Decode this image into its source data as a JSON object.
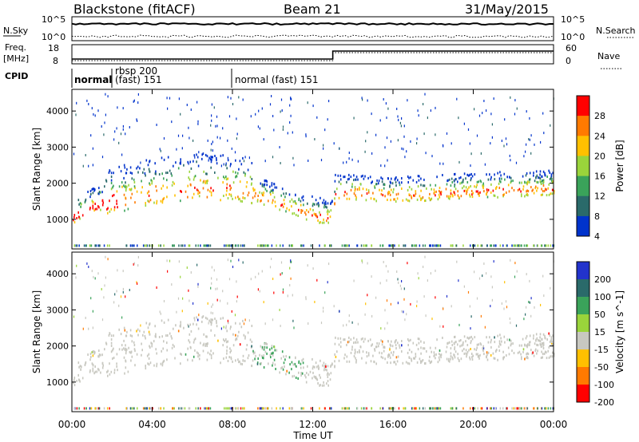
{
  "header": {
    "title": "Blackstone (fitACF)",
    "beam": "Beam 21",
    "date": "31/May/2015"
  },
  "noise_panel": {
    "left_label": "N.Sky",
    "right_label": "N.Search",
    "left_ticks": [
      "10^5",
      "10^0"
    ],
    "right_ticks": [
      "10^5",
      "10^0"
    ]
  },
  "freq_panel": {
    "left_label_line1": "Freq.",
    "left_label_line2": "[MHz]",
    "left_ticks": [
      "18",
      "8"
    ],
    "right_label": "Nave",
    "right_ticks": [
      "60",
      "0"
    ]
  },
  "cpid_panel": {
    "label": "CPID",
    "segments": [
      {
        "text": "normal",
        "start_hour": 0.0
      },
      {
        "text": "rbsp 200",
        "text2": "(fast) 151",
        "start_hour": 1.6
      },
      {
        "text": "normal (fast)  151",
        "start_hour": 8.0
      }
    ]
  },
  "time_axis": {
    "label": "Time UT",
    "ticks": [
      "00:00",
      "04:00",
      "08:00",
      "12:00",
      "16:00",
      "20:00",
      "00:00"
    ],
    "hours": [
      0,
      4,
      8,
      12,
      16,
      20,
      24
    ]
  },
  "range_axis": {
    "label": "Slant Range [km]",
    "ticks": [
      "1000",
      "2000",
      "3000",
      "4000"
    ]
  },
  "chart_data": [
    {
      "type": "heatmap",
      "title": "Power",
      "ylabel": "Slant Range [km]",
      "xlabel": "",
      "xlim": [
        0,
        24
      ],
      "ylim": [
        180,
        4600
      ],
      "colorbar": {
        "label": "Power [dB]",
        "ticks": [
          "28",
          "24",
          "20",
          "16",
          "12",
          "8",
          "4"
        ],
        "colors": [
          "#ff0000",
          "#ff7a00",
          "#ffc000",
          "#9ad43b",
          "#3aa35a",
          "#2a6a6a",
          "#0033cc"
        ]
      },
      "band_center_km": [
        [
          0,
          1050
        ],
        [
          1,
          1350
        ],
        [
          2,
          1500
        ],
        [
          4,
          1700
        ],
        [
          6,
          1850
        ],
        [
          8,
          1850
        ],
        [
          10,
          1500
        ],
        [
          12,
          1100
        ],
        [
          13,
          1000
        ],
        [
          13.1,
          1750
        ],
        [
          16,
          1650
        ],
        [
          20,
          1750
        ],
        [
          24,
          1850
        ]
      ]
    },
    {
      "type": "heatmap",
      "title": "Velocity",
      "ylabel": "Slant Range [km]",
      "xlabel": "Time UT",
      "xlim": [
        0,
        24
      ],
      "ylim": [
        180,
        4600
      ],
      "colorbar": {
        "label": "Velocity [m s^-1]",
        "ticks": [
          "200",
          "100",
          "50",
          "15",
          "-15",
          "-50",
          "-100",
          "-200"
        ],
        "colors": [
          "#2233cc",
          "#2a6a6a",
          "#3aa35a",
          "#9ad43b",
          "#c8c8c0",
          "#ffc000",
          "#ff7a00",
          "#ff0000"
        ]
      }
    }
  ]
}
